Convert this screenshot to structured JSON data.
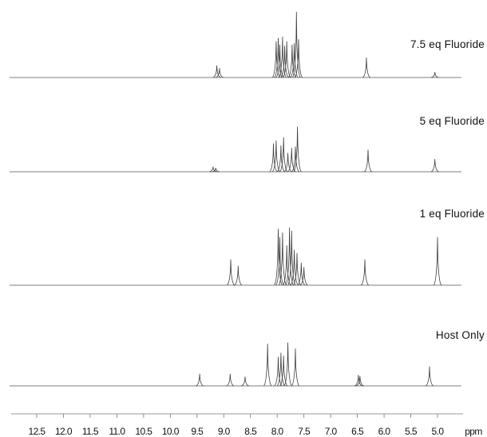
{
  "chart_data": {
    "type": "line",
    "title": "",
    "xlabel": "",
    "ylabel": "",
    "x_unit_label": "ppm",
    "x_reversed": true,
    "xlim": [
      13.0,
      4.6
    ],
    "xticks": [
      12.5,
      12.0,
      11.5,
      11.0,
      10.5,
      10.0,
      9.5,
      9.0,
      8.5,
      8.0,
      7.5,
      7.0,
      6.5,
      6.0,
      5.5,
      5.0
    ],
    "tick_labels": [
      "12.5",
      "12.0",
      "11.5",
      "11.0",
      "10.5",
      "10.0",
      "9.5",
      "9.0",
      "8.5",
      "8.0",
      "7.5",
      "7.0",
      "6.5",
      "6.0",
      "5.5",
      "5.0"
    ],
    "stacked": true,
    "grid": false,
    "series": [
      {
        "name": "7.5 eq Fluoride",
        "peaks": [
          {
            "ppm": 9.13,
            "height": 0.18
          },
          {
            "ppm": 9.08,
            "height": 0.14
          },
          {
            "ppm": 8.02,
            "height": 0.55
          },
          {
            "ppm": 7.98,
            "height": 0.6
          },
          {
            "ppm": 7.95,
            "height": 0.5
          },
          {
            "ppm": 7.9,
            "height": 0.62
          },
          {
            "ppm": 7.86,
            "height": 0.48
          },
          {
            "ppm": 7.82,
            "height": 0.55
          },
          {
            "ppm": 7.72,
            "height": 0.5
          },
          {
            "ppm": 7.68,
            "height": 0.52
          },
          {
            "ppm": 7.64,
            "height": 1.0
          },
          {
            "ppm": 7.6,
            "height": 0.58
          },
          {
            "ppm": 6.33,
            "height": 0.3
          },
          {
            "ppm": 5.05,
            "height": 0.08
          }
        ]
      },
      {
        "name": "5 eq Fluoride",
        "peaks": [
          {
            "ppm": 9.2,
            "height": 0.08
          },
          {
            "ppm": 9.15,
            "height": 0.06
          },
          {
            "ppm": 8.07,
            "height": 0.45
          },
          {
            "ppm": 8.02,
            "height": 0.5
          },
          {
            "ppm": 7.93,
            "height": 0.42
          },
          {
            "ppm": 7.88,
            "height": 0.55
          },
          {
            "ppm": 7.8,
            "height": 0.3
          },
          {
            "ppm": 7.73,
            "height": 0.38
          },
          {
            "ppm": 7.66,
            "height": 0.4
          },
          {
            "ppm": 7.62,
            "height": 0.72
          },
          {
            "ppm": 6.3,
            "height": 0.35
          },
          {
            "ppm": 5.05,
            "height": 0.2
          }
        ]
      },
      {
        "name": "1 eq Fluoride",
        "peaks": [
          {
            "ppm": 8.87,
            "height": 0.4
          },
          {
            "ppm": 8.73,
            "height": 0.3
          },
          {
            "ppm": 7.98,
            "height": 0.88
          },
          {
            "ppm": 7.95,
            "height": 0.75
          },
          {
            "ppm": 7.9,
            "height": 0.82
          },
          {
            "ppm": 7.82,
            "height": 0.62
          },
          {
            "ppm": 7.77,
            "height": 0.9
          },
          {
            "ppm": 7.73,
            "height": 0.85
          },
          {
            "ppm": 7.68,
            "height": 0.55
          },
          {
            "ppm": 7.63,
            "height": 0.5
          },
          {
            "ppm": 7.55,
            "height": 0.35
          },
          {
            "ppm": 7.5,
            "height": 0.28
          },
          {
            "ppm": 6.36,
            "height": 0.4
          },
          {
            "ppm": 5.0,
            "height": 0.75
          }
        ]
      },
      {
        "name": "Host Only",
        "peaks": [
          {
            "ppm": 9.45,
            "height": 0.2
          },
          {
            "ppm": 8.88,
            "height": 0.2
          },
          {
            "ppm": 8.6,
            "height": 0.15
          },
          {
            "ppm": 8.18,
            "height": 0.7
          },
          {
            "ppm": 7.98,
            "height": 0.48
          },
          {
            "ppm": 7.93,
            "height": 0.55
          },
          {
            "ppm": 7.88,
            "height": 0.5
          },
          {
            "ppm": 7.8,
            "height": 0.72
          },
          {
            "ppm": 7.66,
            "height": 0.62
          },
          {
            "ppm": 6.48,
            "height": 0.18
          },
          {
            "ppm": 6.45,
            "height": 0.16
          },
          {
            "ppm": 5.15,
            "height": 0.32
          }
        ]
      }
    ]
  }
}
